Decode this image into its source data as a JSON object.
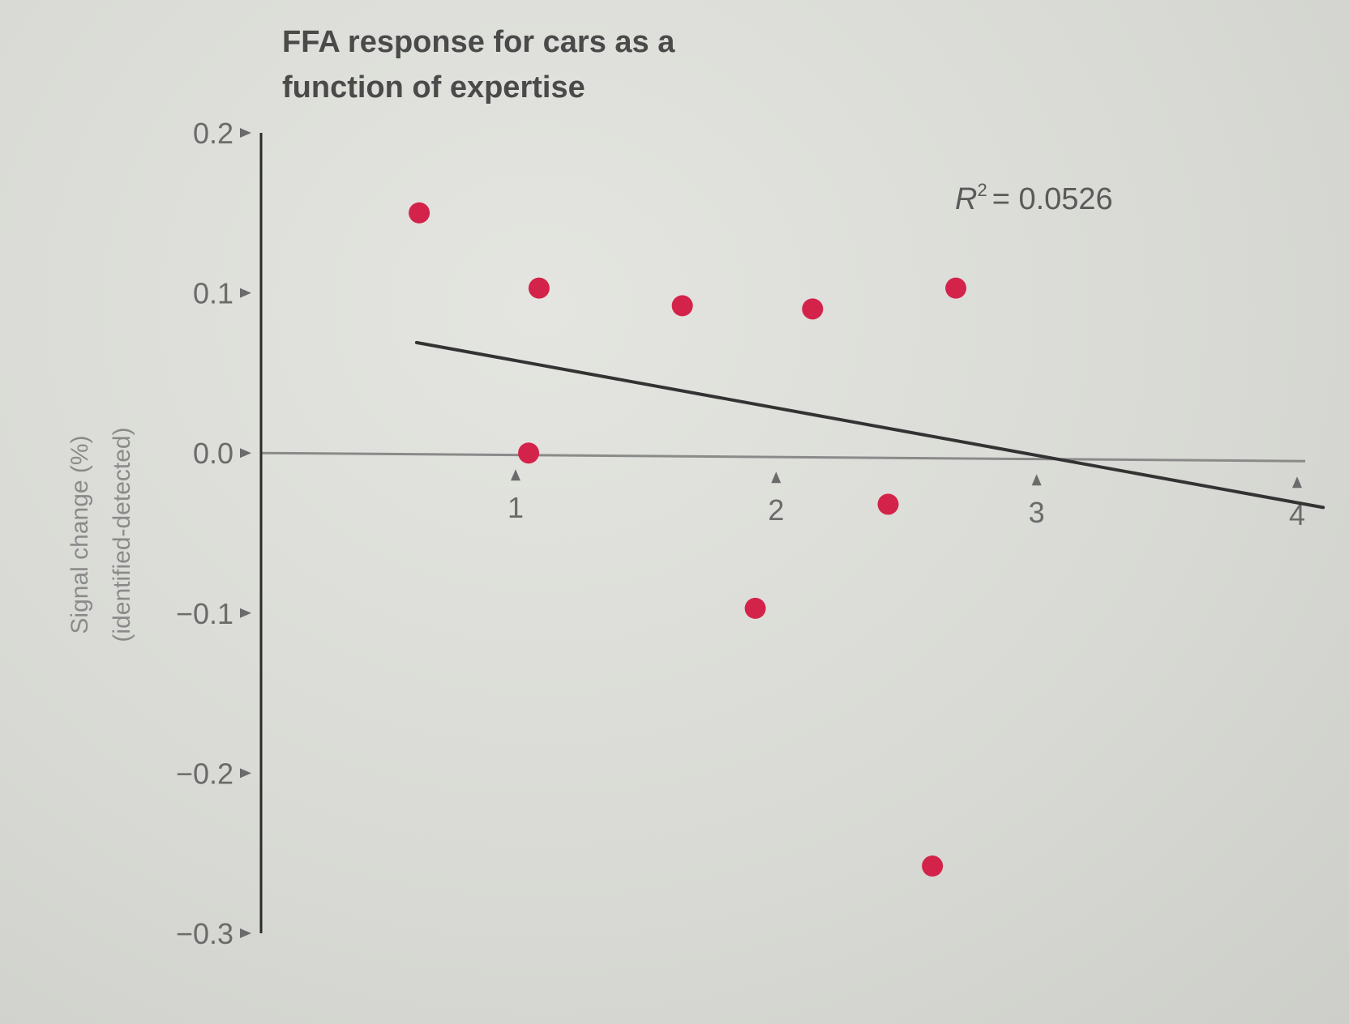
{
  "chart_data": {
    "type": "scatter",
    "title_lines": [
      "FFA response for cars as a",
      "function of expertise"
    ],
    "ylabel_lines": [
      "Signal change (%)",
      "(identified-detected)"
    ],
    "xlabel": "",
    "xlim": [
      0,
      4
    ],
    "ylim": [
      -0.3,
      0.2
    ],
    "xticks": [
      1,
      2,
      3,
      4
    ],
    "xtick_labels": [
      "1",
      "2",
      "3",
      "4"
    ],
    "yticks": [
      0.2,
      0.1,
      0.0,
      -0.1,
      -0.2,
      -0.3
    ],
    "ytick_labels": [
      "0.2",
      "0.1",
      "0.0",
      "−0.1",
      "−0.2",
      "−0.3"
    ],
    "points": [
      {
        "x": 0.63,
        "y": 0.15
      },
      {
        "x": 1.09,
        "y": 0.103
      },
      {
        "x": 1.05,
        "y": 0.0
      },
      {
        "x": 1.64,
        "y": 0.092
      },
      {
        "x": 2.14,
        "y": 0.09
      },
      {
        "x": 2.69,
        "y": 0.103
      },
      {
        "x": 2.43,
        "y": -0.032
      },
      {
        "x": 1.92,
        "y": -0.097
      },
      {
        "x": 2.6,
        "y": -0.258
      }
    ],
    "fit_line": {
      "x": [
        0.62,
        4.1
      ],
      "y": [
        0.069,
        -0.034
      ]
    },
    "r_squared_label": "= 0.0526",
    "r_squared_symbol": "R",
    "r_squared_exponent": "2",
    "grid": false,
    "colors": {
      "points": "#d4234a",
      "fit_line": "#333333",
      "axis": "#2b2b2b",
      "zero_line": "#8a8a8a"
    }
  }
}
